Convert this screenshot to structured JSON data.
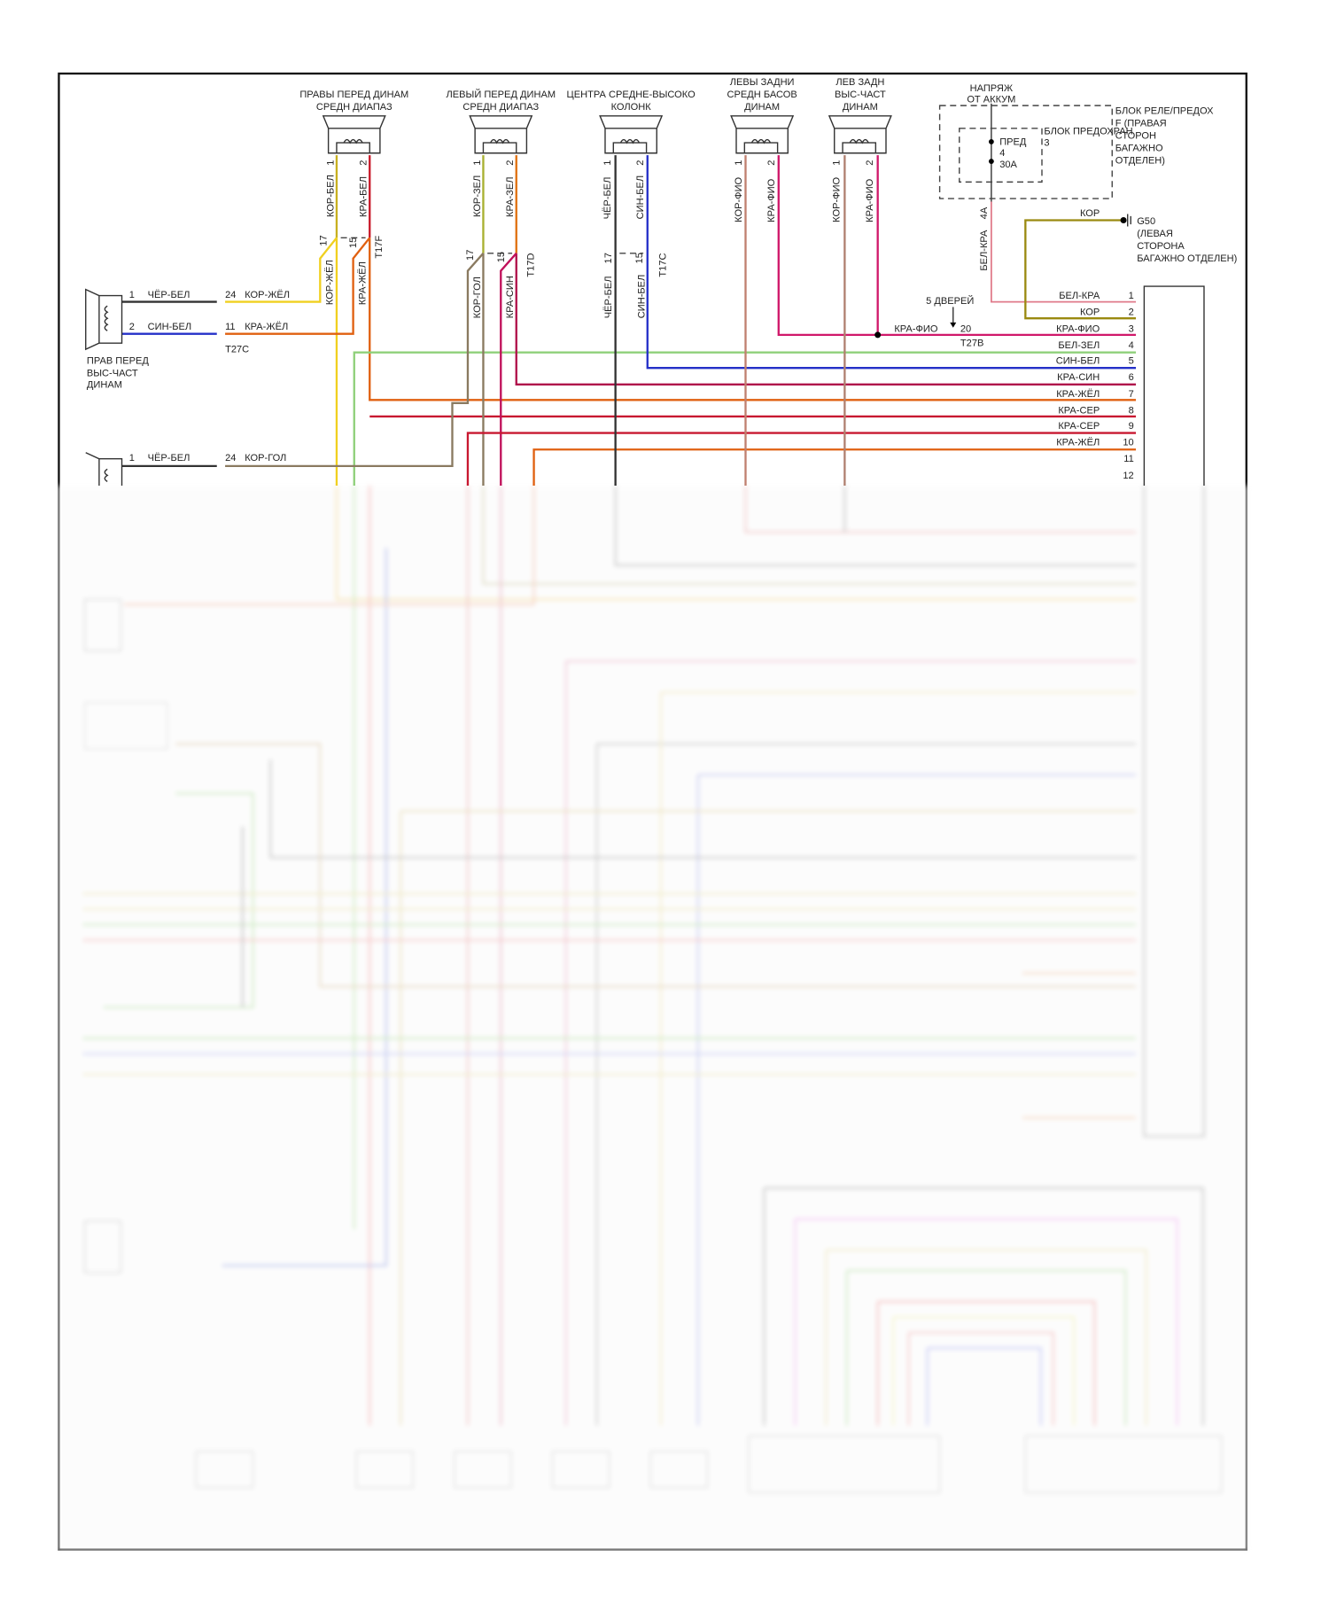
{
  "speakers": [
    {
      "title": [
        "ПРАВЫ ПЕРЕД ДИНАМ",
        "СРЕДН ДИАПАЗ"
      ],
      "pin1": "1",
      "pin2": "2",
      "wire1": "КОР-БЕЛ",
      "wire2": "КРА-БЕЛ"
    },
    {
      "title": [
        "ЛЕВЫЙ ПЕРЕД ДИНАМ",
        "СРЕДН ДИАПАЗ"
      ],
      "pin1": "1",
      "pin2": "2",
      "wire1": "КОР-ЗЕЛ",
      "wire2": "КРА-ЗЕЛ"
    },
    {
      "title": [
        "ЦЕНТРА СРЕДНЕ-ВЫСОКО",
        "КОЛОНК"
      ],
      "pin1": "1",
      "pin2": "2",
      "wire1": "ЧЁР-БЕЛ",
      "wire2": "СИН-БЕЛ"
    },
    {
      "title": [
        "ЛЕВЫ ЗАДНИ",
        "СРЕДН БАСОВ",
        "ДИНАМ"
      ],
      "pin1": "1",
      "pin2": "2",
      "wire1": "КОР-ФИО",
      "wire2": "КРА-ФИО"
    },
    {
      "title": [
        "ЛЕВ ЗАДН",
        "ВЫС-ЧАСТ",
        "ДИНАМ"
      ],
      "pin1": "1",
      "pin2": "2",
      "wire1": "КОР-ФИО",
      "wire2": "КРА-ФИО"
    }
  ],
  "connectors": [
    {
      "name": "T17F",
      "pin_a": "17",
      "pin_b": "15",
      "wire_a": "КОР-ЖЁЛ",
      "wire_b": "КРА-ЖЁЛ"
    },
    {
      "name": "T17D",
      "pin_a": "17",
      "pin_b": "15",
      "wire_a": "КОР-ГОЛ",
      "wire_b": "КРА-СИН"
    },
    {
      "name": "T17C",
      "pin_a": "17",
      "pin_b": "15",
      "wire_a": "ЧЁР-БЕЛ",
      "wire_b": "СИН-БЕЛ"
    }
  ],
  "tweeter_right": {
    "title": [
      "ПРАВ ПЕРЕД",
      "ВЫС-ЧАСТ",
      "ДИНАМ"
    ],
    "pin1": "1",
    "wire1": "ЧЁР-БЕЛ",
    "pin2": "2",
    "wire2": "СИН-БЕЛ",
    "conn_pin1": "24",
    "conn_wire1": "КОР-ЖЁЛ",
    "conn_pin2": "11",
    "conn_wire2": "КРА-ЖЁЛ",
    "conn_name": "T27C"
  },
  "speaker_second": {
    "pin1": "1",
    "wire1": "ЧЁР-БЕЛ",
    "conn_pin": "24",
    "conn_wire": "КОР-ГОЛ"
  },
  "power": {
    "source": [
      "НАПРЯЖ",
      "ОТ АККУМ"
    ],
    "relay_box": [
      "БЛОК РЕЛЕ/ПРЕДОХ",
      "F (ПРАВАЯ",
      "СТОРОН",
      "БАГАЖНО",
      "ОТДЕЛЕН)"
    ],
    "fuse_box": "БЛОК ПРЕДОХРАН",
    "fuse_box_num": "3",
    "fuse": [
      "ПРЕД",
      "4",
      "30A"
    ],
    "pin": "4A",
    "wire": "БЕЛ-КРА"
  },
  "ground": {
    "wire": "КОР",
    "name": [
      "G50",
      "(ЛЕВАЯ",
      "СТОРОНА",
      "БАГАЖНО ОТДЕЛЕН)"
    ]
  },
  "door_option": {
    "label": "5 ДВЕРЕЙ",
    "wire": "КРА-ФИО",
    "pin": "20",
    "conn": "T27B"
  },
  "unit_pins": [
    {
      "pin": "1",
      "wire": "БЕЛ-КРА",
      "color": "#e07a8a"
    },
    {
      "pin": "2",
      "wire": "КОР",
      "color": "#9a8a10"
    },
    {
      "pin": "3",
      "wire": "КРА-ФИО",
      "color": "#d0186a"
    },
    {
      "pin": "4",
      "wire": "БЕЛ-ЗЕЛ",
      "color": "#8fd07a"
    },
    {
      "pin": "5",
      "wire": "СИН-БЕЛ",
      "color": "#2430c8"
    },
    {
      "pin": "6",
      "wire": "КРА-СИН",
      "color": "#b0104a"
    },
    {
      "pin": "7",
      "wire": "КРА-ЖЁЛ",
      "color": "#e06010"
    },
    {
      "pin": "8",
      "wire": "КРА-СЕР",
      "color": "#c81830"
    },
    {
      "pin": "9",
      "wire": "КРА-СЕР",
      "color": "#c81830"
    },
    {
      "pin": "10",
      "wire": "КРА-ЖЁЛ",
      "color": "#e06010"
    },
    {
      "pin": "11",
      "wire": ""
    },
    {
      "pin": "12",
      "wire": ""
    }
  ]
}
